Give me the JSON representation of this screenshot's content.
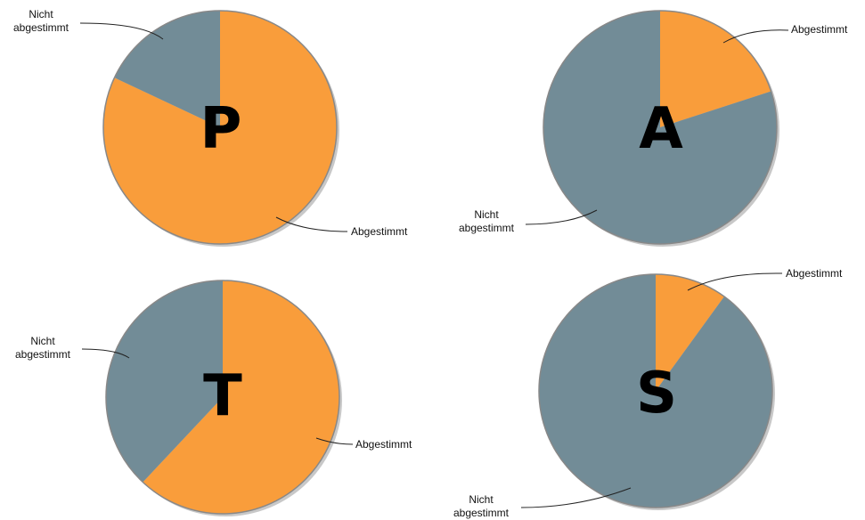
{
  "chart_data": [
    {
      "type": "pie",
      "overlay_letter": "P",
      "slices": [
        {
          "label": "Abgestimmt",
          "value": 82,
          "color": "#f99d3b"
        },
        {
          "label": "Nicht abgestimmt",
          "value": 18,
          "color": "#728c97"
        }
      ]
    },
    {
      "type": "pie",
      "overlay_letter": "A",
      "slices": [
        {
          "label": "Abgestimmt",
          "value": 20,
          "color": "#f99d3b"
        },
        {
          "label": "Nicht abgestimmt",
          "value": 80,
          "color": "#728c97"
        }
      ]
    },
    {
      "type": "pie",
      "overlay_letter": "T",
      "slices": [
        {
          "label": "Abgestimmt",
          "value": 62,
          "color": "#f99d3b"
        },
        {
          "label": "Nicht abgestimmt",
          "value": 38,
          "color": "#728c97"
        }
      ]
    },
    {
      "type": "pie",
      "overlay_letter": "S",
      "slices": [
        {
          "label": "Abgestimmt",
          "value": 10,
          "color": "#f99d3b"
        },
        {
          "label": "Nicht abgestimmt",
          "value": 90,
          "color": "#728c97"
        }
      ]
    }
  ]
}
